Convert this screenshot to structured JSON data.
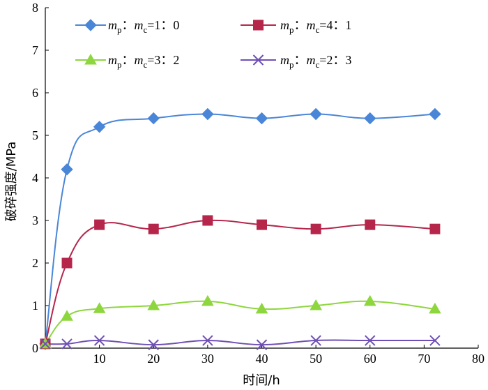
{
  "chart_data": {
    "type": "line",
    "title": "",
    "xlabel": "时间/h",
    "ylabel": "破碎强度/MPa",
    "xlim": [
      0,
      80
    ],
    "ylim": [
      0,
      8
    ],
    "x_ticks": [
      "10",
      "20",
      "30",
      "40",
      "50",
      "60",
      "70",
      "80"
    ],
    "y_ticks": [
      "0",
      "1",
      "2",
      "3",
      "4",
      "5",
      "6",
      "7",
      "8"
    ],
    "grid": false,
    "legend_position": "top",
    "x": [
      0,
      4,
      10,
      20,
      30,
      40,
      50,
      60,
      72
    ],
    "series": [
      {
        "name": "mp：mc=1：0",
        "legend": {
          "m1": "m",
          "s1": "p",
          "sep": "：",
          "m2": "m",
          "s2": "c",
          "ratio": "=1：0"
        },
        "color": "#4a86d8",
        "marker": "diamond",
        "values": [
          0.1,
          4.2,
          5.2,
          5.4,
          5.5,
          5.4,
          5.5,
          5.4,
          5.5
        ]
      },
      {
        "name": "mp：mc=4：1",
        "legend": {
          "m1": "m",
          "s1": "p",
          "sep": "：",
          "m2": "m",
          "s2": "c",
          "ratio": "=4：1"
        },
        "color": "#b5264a",
        "marker": "square",
        "values": [
          0.1,
          2.0,
          2.9,
          2.8,
          3.0,
          2.9,
          2.8,
          2.9,
          2.8
        ]
      },
      {
        "name": "mp：mc=3：2",
        "legend": {
          "m1": "m",
          "s1": "p",
          "sep": "：",
          "m2": "m",
          "s2": "c",
          "ratio": "=3：2"
        },
        "color": "#8ed63e",
        "marker": "triangle",
        "values": [
          0.1,
          0.75,
          0.93,
          1.0,
          1.1,
          0.92,
          1.0,
          1.1,
          0.92
        ]
      },
      {
        "name": "mp：mc=2：3",
        "legend": {
          "m1": "m",
          "s1": "p",
          "sep": "：",
          "m2": "m",
          "s2": "c",
          "ratio": "=2：3"
        },
        "color": "#6f4fb5",
        "marker": "x",
        "values": [
          0.1,
          0.1,
          0.18,
          0.08,
          0.18,
          0.08,
          0.18,
          0.18,
          0.18
        ]
      }
    ]
  }
}
